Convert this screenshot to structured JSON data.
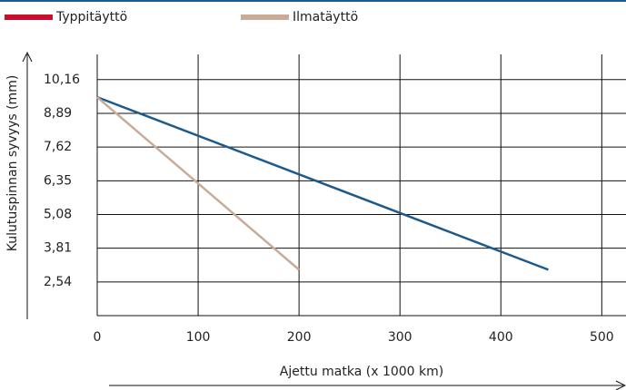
{
  "chart_data": {
    "type": "line",
    "x_label": "Ajettu matka (x 1000 km)",
    "y_label": "Kulutuspinnan syvyys (mm)",
    "series": [
      {
        "name": "Typpitäyttö",
        "color": "#1d5a8c",
        "legend_color": "#c8102e",
        "x": [
          0,
          447
        ],
        "values": [
          9.5,
          3.0
        ]
      },
      {
        "name": "Ilmatäyttö",
        "color": "#c9ab97",
        "legend_color": "#c9ab97",
        "x": [
          0,
          200
        ],
        "values": [
          9.5,
          3.0
        ]
      }
    ],
    "xlim": [
      0,
      524
    ],
    "xticks": [
      0,
      100,
      200,
      300,
      400,
      500
    ],
    "ylim": [
      1.27,
      11.11
    ],
    "yticks": [
      {
        "value": 2.54,
        "label": "2,54"
      },
      {
        "value": 3.81,
        "label": "3,81"
      },
      {
        "value": 5.08,
        "label": "5,08"
      },
      {
        "value": 6.35,
        "label": "6,35"
      },
      {
        "value": 7.62,
        "label": "7,62"
      },
      {
        "value": 8.89,
        "label": "8,89"
      },
      {
        "value": 10.16,
        "label": "10,16"
      }
    ],
    "grid": true
  }
}
